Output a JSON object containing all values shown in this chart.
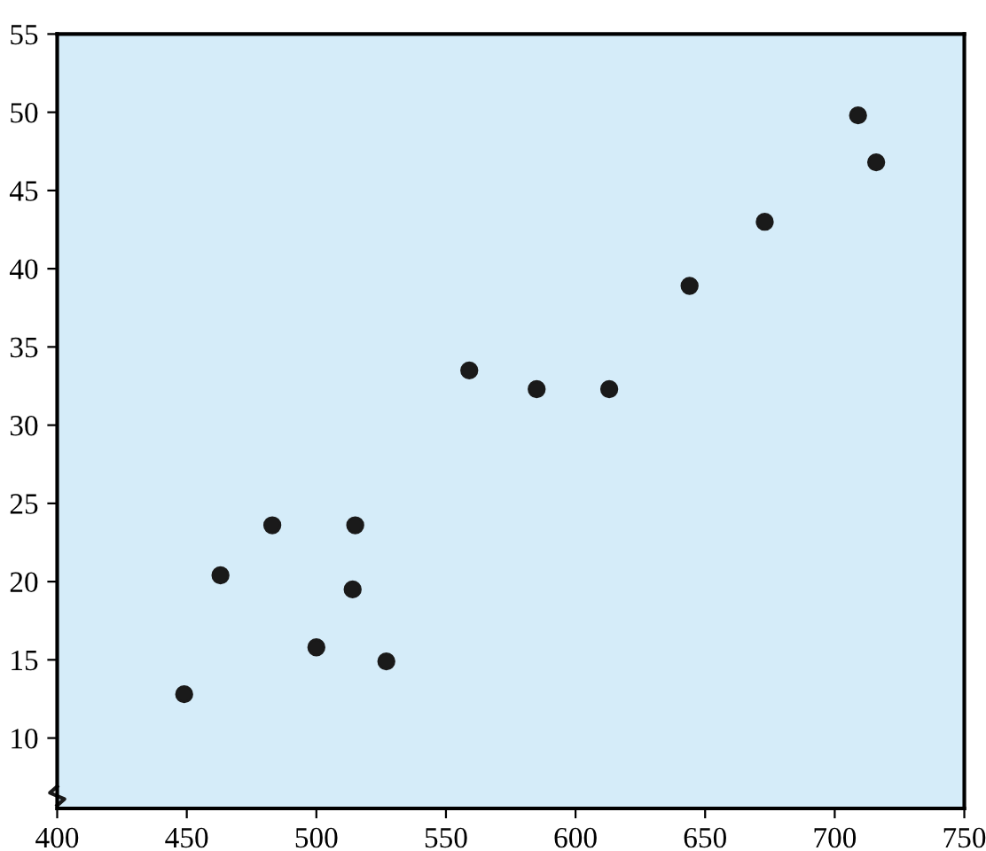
{
  "chart_data": {
    "type": "scatter",
    "x": [
      449,
      463,
      483,
      515,
      514,
      500,
      527,
      559,
      585,
      613,
      644,
      673,
      709,
      716
    ],
    "values": [
      12.8,
      20.4,
      23.6,
      23.6,
      19.5,
      15.8,
      14.9,
      33.5,
      32.3,
      32.3,
      38.9,
      43,
      49.8,
      46.8
    ],
    "color": "#1a1a1a",
    "marker": "circle",
    "xlim": [
      400,
      750
    ],
    "xticks": [
      400,
      450,
      500,
      550,
      600,
      650,
      700,
      750
    ],
    "ylim": [
      5.5,
      55
    ],
    "yticks": [
      10,
      15,
      20,
      25,
      30,
      35,
      40,
      45,
      50,
      55
    ],
    "grid": false,
    "legend": false
  }
}
